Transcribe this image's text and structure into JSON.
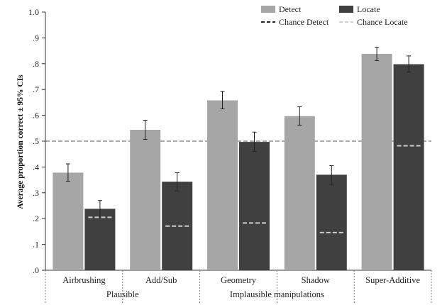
{
  "chart_data": {
    "type": "bar",
    "ylabel": "Average proportion correct ± 95% CIs",
    "ylim": [
      0,
      1
    ],
    "y_ticks": [
      {
        "value": 0.0,
        "label": ".0"
      },
      {
        "value": 0.1,
        "label": ".1"
      },
      {
        "value": 0.2,
        "label": ".2"
      },
      {
        "value": 0.3,
        "label": ".3"
      },
      {
        "value": 0.4,
        "label": ".4"
      },
      {
        "value": 0.5,
        "label": ".5"
      },
      {
        "value": 0.6,
        "label": ".6"
      },
      {
        "value": 0.7,
        "label": ".7"
      },
      {
        "value": 0.8,
        "label": ".8"
      },
      {
        "value": 0.9,
        "label": ".9"
      },
      {
        "value": 1.0,
        "label": "1.0"
      }
    ],
    "categories": [
      "Airbrushing",
      "Add/Sub",
      "Geometry",
      "Shadow",
      "Super-Additive"
    ],
    "category_groups": [
      {
        "label": "Plausible",
        "categories": [
          "Airbrushing",
          "Add/Sub"
        ]
      },
      {
        "label": "Implausible manipulations",
        "categories": [
          "Geometry",
          "Shadow"
        ]
      },
      {
        "label": "",
        "categories": [
          "Super-Additive"
        ]
      }
    ],
    "series": [
      {
        "name": "Detect",
        "color": "#a6a6a6",
        "values": [
          0.378,
          0.544,
          0.658,
          0.597,
          0.838
        ],
        "ci_low": [
          0.345,
          0.507,
          0.625,
          0.562,
          0.812
        ],
        "ci_high": [
          0.412,
          0.581,
          0.693,
          0.633,
          0.864
        ]
      },
      {
        "name": "Locate",
        "color": "#404040",
        "values": [
          0.238,
          0.343,
          0.497,
          0.37,
          0.798
        ],
        "ci_low": [
          0.205,
          0.307,
          0.46,
          0.332,
          0.768
        ],
        "ci_high": [
          0.27,
          0.378,
          0.535,
          0.405,
          0.83
        ]
      }
    ],
    "chance_detect": {
      "name": "Chance Detect",
      "value": 0.5,
      "color": "#555555"
    },
    "chance_locate": {
      "name": "Chance Locate",
      "values": [
        0.205,
        0.171,
        0.183,
        0.146,
        0.482
      ],
      "color": "#cfcfcf"
    },
    "legend_position": "top-right",
    "grid": false
  }
}
